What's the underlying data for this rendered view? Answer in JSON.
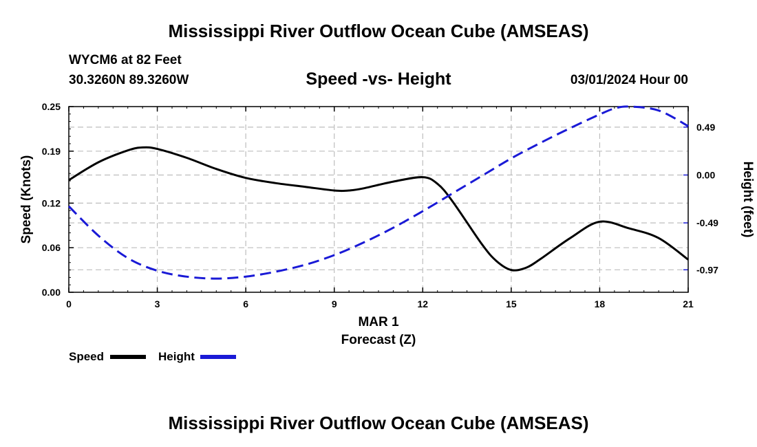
{
  "header": {
    "title": "Mississippi River Outflow Ocean Cube (AMSEAS)",
    "station": "WYCM6 at 82 Feet",
    "coords": "30.3260N  89.3260W",
    "subtitle": "Speed -vs- Height",
    "datetime": "03/01/2024 Hour 00"
  },
  "footer": {
    "title": "Mississippi River Outflow Ocean Cube (AMSEAS)"
  },
  "legend": {
    "speed_label": "Speed",
    "height_label": "Height"
  },
  "colors": {
    "speed": "#000000",
    "height": "#1a1ad6",
    "grid": "#bdbdbd"
  },
  "chart_data": {
    "type": "line",
    "xlabel": "Forecast (Z)",
    "xsublabel": "MAR 1",
    "ylabel": "Speed (Knots)",
    "y2label": "Height (feet)",
    "xlim": [
      0,
      21
    ],
    "ylim": [
      0,
      0.25
    ],
    "y2lim": [
      -1.2,
      0.7
    ],
    "xticks": [
      0,
      3,
      6,
      9,
      12,
      15,
      18,
      21
    ],
    "xtick_labels": [
      "0",
      "3",
      "6",
      "9",
      "12",
      "15",
      "18",
      "21"
    ],
    "yticks": [
      0,
      0.06,
      0.12,
      0.19,
      0.25
    ],
    "ytick_labels": [
      "0.00",
      "0.06",
      "0.12",
      "0.19",
      "0.25"
    ],
    "y2ticks": [
      -0.97,
      -0.49,
      0.0,
      0.49
    ],
    "y2tick_labels": [
      "-0.97",
      "-0.49",
      "0.00",
      "0.49"
    ],
    "grid": true,
    "series": [
      {
        "name": "Speed",
        "axis": "left",
        "style": "solid",
        "x": [
          0,
          1,
          2,
          2.5,
          3,
          4,
          5,
          6,
          7,
          8,
          9,
          9.5,
          10,
          11,
          12,
          12.5,
          13,
          14,
          14.5,
          15,
          15.5,
          16,
          17,
          18,
          19,
          20,
          21
        ],
        "y": [
          0.151,
          0.175,
          0.191,
          0.195,
          0.193,
          0.181,
          0.166,
          0.154,
          0.147,
          0.142,
          0.137,
          0.137,
          0.14,
          0.149,
          0.155,
          0.146,
          0.123,
          0.065,
          0.042,
          0.03,
          0.033,
          0.045,
          0.073,
          0.095,
          0.086,
          0.073,
          0.044
        ]
      },
      {
        "name": "Height",
        "axis": "right",
        "style": "dashed",
        "x": [
          0,
          1,
          2,
          3,
          4,
          5,
          6,
          7,
          8,
          9,
          10,
          11,
          12,
          13,
          14,
          15,
          16,
          17,
          18,
          18.5,
          19,
          20,
          21
        ],
        "y": [
          -0.32,
          -0.62,
          -0.85,
          -0.98,
          -1.04,
          -1.06,
          -1.04,
          -0.99,
          -0.92,
          -0.82,
          -0.69,
          -0.54,
          -0.37,
          -0.19,
          -0.01,
          0.17,
          0.33,
          0.48,
          0.62,
          0.68,
          0.7,
          0.66,
          0.5
        ]
      }
    ]
  }
}
